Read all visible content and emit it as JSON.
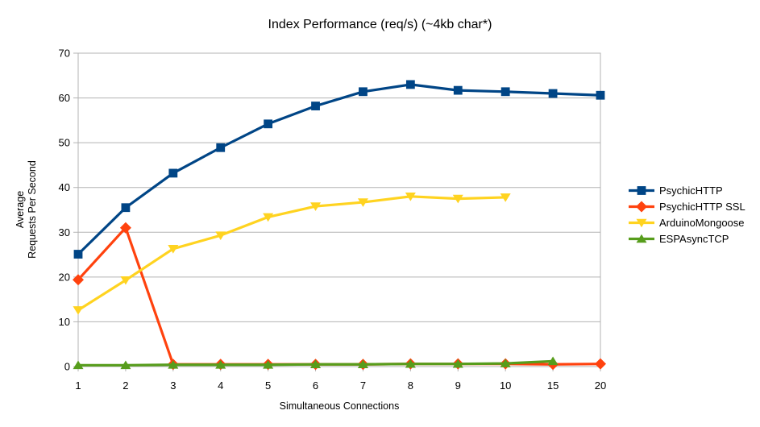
{
  "title": "Index Performance (req/s) (~4kb char*)",
  "colors": {
    "background": "#ffffff",
    "grid": "#b3b3b3",
    "axis": "#b3b3b3",
    "text": "#000000"
  },
  "chart_data": {
    "type": "line",
    "title": "Index Performance (req/s) (~4kb char*)",
    "xlabel": "Simultaneous Connections",
    "ylabel": "Average Requests Per Second",
    "ylabel_lines": [
      "Average",
      "Requests Per Second"
    ],
    "categories": [
      "1",
      "2",
      "3",
      "4",
      "5",
      "6",
      "7",
      "8",
      "9",
      "10",
      "15",
      "20"
    ],
    "y_ticks": [
      0,
      10,
      20,
      30,
      40,
      50,
      60,
      70
    ],
    "ylim": [
      0,
      70
    ],
    "grid": "horizontal",
    "legend_position": "right",
    "series": [
      {
        "name": "PsychicHTTP",
        "color": "#004586",
        "marker": "square",
        "values": [
          25.1,
          35.5,
          43.2,
          48.9,
          54.2,
          58.2,
          61.4,
          63.0,
          61.7,
          61.4,
          61.0,
          60.6
        ]
      },
      {
        "name": "PsychicHTTP SSL",
        "color": "#FF420E",
        "marker": "diamond",
        "values": [
          19.4,
          31.0,
          0.5,
          0.5,
          0.5,
          0.5,
          0.5,
          0.6,
          0.6,
          0.6,
          0.5,
          0.6
        ]
      },
      {
        "name": "ArduinoMongoose",
        "color": "#FFD320",
        "marker": "triangle-down",
        "values": [
          12.6,
          19.3,
          26.3,
          29.3,
          33.4,
          35.8,
          36.7,
          38.0,
          37.5,
          37.8
        ]
      },
      {
        "name": "ESPAsyncTCP",
        "color": "#579D1C",
        "marker": "triangle-up",
        "values": [
          0.3,
          0.3,
          0.4,
          0.4,
          0.4,
          0.5,
          0.5,
          0.6,
          0.6,
          0.7,
          1.2
        ]
      }
    ]
  }
}
